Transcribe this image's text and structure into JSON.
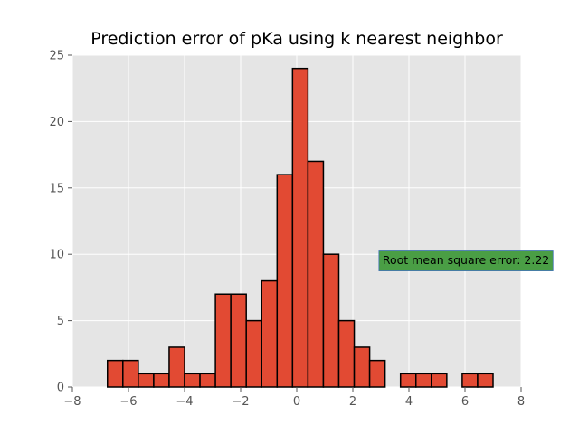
{
  "chart_data": {
    "type": "bar",
    "title": "Prediction error of pKa using k nearest neighbor",
    "xlabel": "",
    "ylabel": "",
    "xlim": [
      -8,
      8
    ],
    "ylim": [
      0,
      25
    ],
    "xticks": [
      -8,
      -6,
      -4,
      -2,
      0,
      2,
      4,
      6,
      8
    ],
    "yticks": [
      0,
      5,
      10,
      15,
      20,
      25
    ],
    "grid": true,
    "bar_color": "#E24A33",
    "bar_edge_color": "#000000",
    "background_color": "#E5E5E5",
    "bins": [
      {
        "x0": -6.75,
        "x1": -6.2,
        "value": 2
      },
      {
        "x0": -6.2,
        "x1": -5.65,
        "value": 2
      },
      {
        "x0": -5.65,
        "x1": -5.1,
        "value": 1
      },
      {
        "x0": -5.1,
        "x1": -4.55,
        "value": 1
      },
      {
        "x0": -4.55,
        "x1": -4.0,
        "value": 3
      },
      {
        "x0": -4.0,
        "x1": -3.45,
        "value": 1
      },
      {
        "x0": -3.45,
        "x1": -2.9,
        "value": 1
      },
      {
        "x0": -2.9,
        "x1": -2.35,
        "value": 7
      },
      {
        "x0": -2.35,
        "x1": -1.8,
        "value": 7
      },
      {
        "x0": -1.8,
        "x1": -1.25,
        "value": 5
      },
      {
        "x0": -1.25,
        "x1": -0.7,
        "value": 8
      },
      {
        "x0": -0.7,
        "x1": -0.15,
        "value": 16
      },
      {
        "x0": -0.15,
        "x1": 0.4,
        "value": 24
      },
      {
        "x0": 0.4,
        "x1": 0.95,
        "value": 17
      },
      {
        "x0": 0.95,
        "x1": 1.5,
        "value": 10
      },
      {
        "x0": 1.5,
        "x1": 2.05,
        "value": 5
      },
      {
        "x0": 2.05,
        "x1": 2.6,
        "value": 3
      },
      {
        "x0": 2.6,
        "x1": 3.15,
        "value": 2
      },
      {
        "x0": 3.7,
        "x1": 4.25,
        "value": 1
      },
      {
        "x0": 4.25,
        "x1": 4.8,
        "value": 1
      },
      {
        "x0": 4.8,
        "x1": 5.35,
        "value": 1
      },
      {
        "x0": 5.9,
        "x1": 6.45,
        "value": 1
      },
      {
        "x0": 6.45,
        "x1": 7.0,
        "value": 1
      }
    ],
    "annotation": {
      "text": "Root mean square error: 2.22",
      "x": 2.9,
      "y": 9.5,
      "background": "#4A9E45"
    }
  }
}
